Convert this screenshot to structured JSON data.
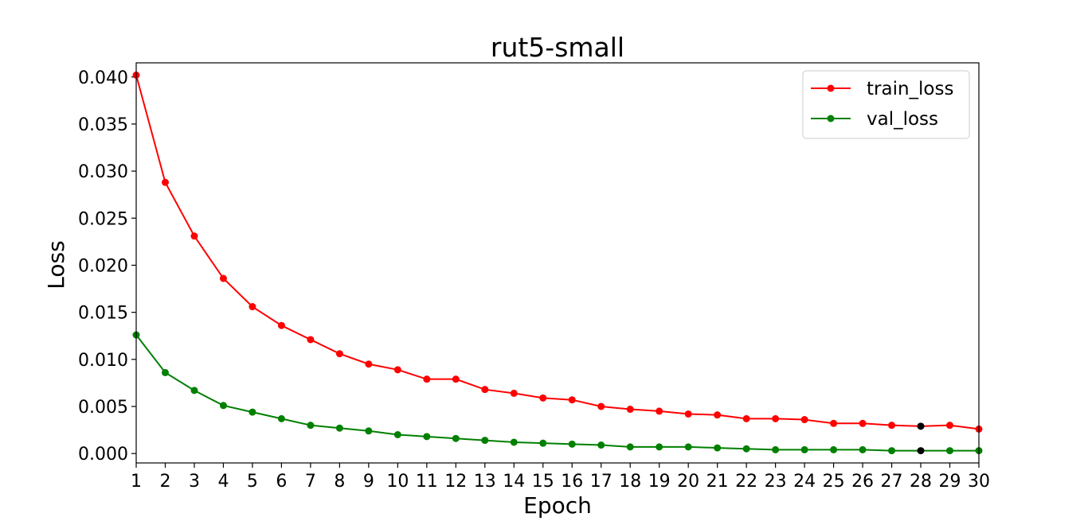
{
  "chart_data": {
    "type": "line",
    "title": "rut5-small",
    "xlabel": "Epoch",
    "ylabel": "Loss",
    "x": [
      1,
      2,
      3,
      4,
      5,
      6,
      7,
      8,
      9,
      10,
      11,
      12,
      13,
      14,
      15,
      16,
      17,
      18,
      19,
      20,
      21,
      22,
      23,
      24,
      25,
      26,
      27,
      28,
      29,
      30
    ],
    "xlim": [
      1,
      30
    ],
    "ylim": [
      -0.001,
      0.0415
    ],
    "x_ticks": [
      "1",
      "2",
      "3",
      "4",
      "5",
      "6",
      "7",
      "8",
      "9",
      "10",
      "11",
      "12",
      "13",
      "14",
      "15",
      "16",
      "17",
      "18",
      "19",
      "20",
      "21",
      "22",
      "23",
      "24",
      "25",
      "26",
      "27",
      "28",
      "29",
      "30"
    ],
    "y_ticks": [
      0.0,
      0.005,
      0.01,
      0.015,
      0.02,
      0.025,
      0.03,
      0.035,
      0.04
    ],
    "y_tick_labels": [
      "0.000",
      "0.005",
      "0.010",
      "0.015",
      "0.020",
      "0.025",
      "0.030",
      "0.035",
      "0.040"
    ],
    "grid": false,
    "legend_position": "top-right",
    "series": [
      {
        "name": "train_loss",
        "color": "#ff0000",
        "values": [
          0.0402,
          0.0288,
          0.0231,
          0.0186,
          0.0156,
          0.0136,
          0.0121,
          0.0106,
          0.0095,
          0.0089,
          0.0079,
          0.0079,
          0.0068,
          0.0064,
          0.0059,
          0.0057,
          0.005,
          0.0047,
          0.0045,
          0.0042,
          0.0041,
          0.0037,
          0.0037,
          0.0036,
          0.0032,
          0.0032,
          0.003,
          0.0029,
          0.003,
          0.0026
        ]
      },
      {
        "name": "val_loss",
        "color": "#008000",
        "values": [
          0.0126,
          0.0086,
          0.0067,
          0.0051,
          0.0044,
          0.0037,
          0.003,
          0.0027,
          0.0024,
          0.002,
          0.0018,
          0.0016,
          0.0014,
          0.0012,
          0.0011,
          0.001,
          0.0009,
          0.0007,
          0.0007,
          0.0007,
          0.0006,
          0.0005,
          0.0004,
          0.0004,
          0.0004,
          0.0004,
          0.0003,
          0.0003,
          0.0003,
          0.0003
        ]
      }
    ],
    "highlight": {
      "x": 28,
      "color": "#000000"
    }
  }
}
